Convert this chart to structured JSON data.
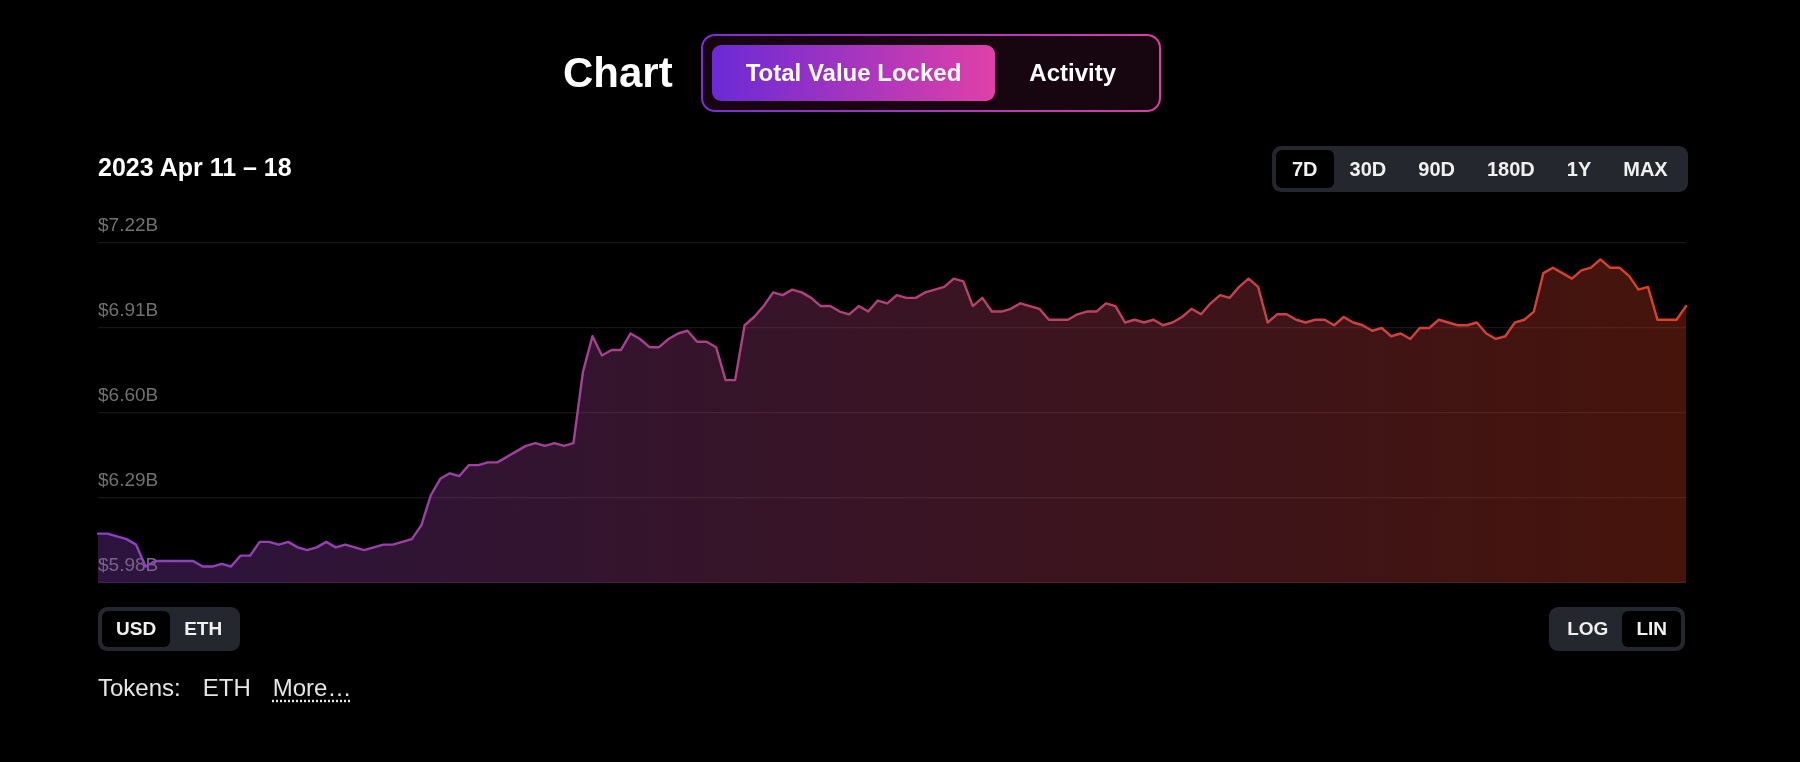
{
  "chart_data": {
    "type": "area",
    "title": "Chart",
    "subtitle": "2023 Apr 11 – 18",
    "annotations": [
      "Total Value Locked",
      "Activity",
      "7D",
      "30D",
      "90D",
      "180D",
      "1Y",
      "MAX",
      "USD",
      "ETH",
      "LOG",
      "LIN",
      "Tokens:",
      "ETH",
      "More…"
    ],
    "categories": [
      null,
      null,
      null,
      null,
      null,
      null,
      null,
      null,
      null,
      null,
      null,
      null,
      null,
      null,
      null,
      null,
      null,
      null,
      null,
      null,
      null,
      null,
      null,
      null,
      null,
      null,
      null,
      null,
      null,
      null,
      null,
      null,
      null,
      null,
      null,
      null,
      null,
      null,
      null,
      null,
      null,
      null,
      null,
      null,
      null,
      null,
      null,
      null,
      null,
      null,
      null,
      null,
      null,
      null,
      null,
      null,
      null,
      null,
      null,
      null,
      null,
      null,
      null,
      null,
      null,
      null,
      null,
      null,
      null,
      null,
      null,
      null,
      null,
      null,
      null,
      null,
      null,
      null,
      null,
      null,
      null,
      null,
      null,
      null,
      null,
      null,
      null,
      null,
      null,
      null,
      null,
      null,
      null,
      null,
      null,
      null,
      null,
      null,
      null,
      null,
      null,
      null,
      null,
      null,
      null,
      null,
      null,
      null,
      null,
      null,
      null,
      null,
      null,
      null,
      null,
      null,
      null,
      null,
      null,
      null,
      null,
      null,
      null,
      null,
      null,
      null,
      null,
      null,
      null,
      null,
      null,
      null,
      null,
      null,
      null,
      null,
      null,
      null,
      null,
      null,
      null,
      null,
      null,
      null,
      null,
      null,
      null,
      null,
      null,
      null,
      null,
      null,
      null,
      null,
      null,
      null,
      null,
      null,
      null,
      null,
      null,
      null,
      null,
      null,
      null,
      null,
      null,
      null
    ],
    "values": [
      6.16,
      6.16,
      6.15,
      6.14,
      6.12,
      6.04,
      6.06,
      6.06,
      6.06,
      6.06,
      6.06,
      6.04,
      6.04,
      6.05,
      6.04,
      6.08,
      6.08,
      6.13,
      6.13,
      6.12,
      6.13,
      6.11,
      6.1,
      6.11,
      6.13,
      6.11,
      6.12,
      6.11,
      6.1,
      6.11,
      6.12,
      6.12,
      6.13,
      6.14,
      6.19,
      6.3,
      6.36,
      6.38,
      6.37,
      6.41,
      6.41,
      6.42,
      6.42,
      6.44,
      6.46,
      6.48,
      6.49,
      6.48,
      6.49,
      6.48,
      6.49,
      6.75,
      6.88,
      6.81,
      6.83,
      6.83,
      6.89,
      6.87,
      6.84,
      6.84,
      6.87,
      6.89,
      6.9,
      6.86,
      6.86,
      6.84,
      6.72,
      6.72,
      6.92,
      6.95,
      6.99,
      7.04,
      7.03,
      7.05,
      7.04,
      7.02,
      6.99,
      6.99,
      6.97,
      6.96,
      6.99,
      6.97,
      7.01,
      7.0,
      7.03,
      7.02,
      7.02,
      7.04,
      7.05,
      7.06,
      7.09,
      7.08,
      6.99,
      7.02,
      6.97,
      6.97,
      6.98,
      7.0,
      6.99,
      6.98,
      6.94,
      6.94,
      6.94,
      6.96,
      6.97,
      6.97,
      7.0,
      6.99,
      6.93,
      6.94,
      6.93,
      6.94,
      6.92,
      6.93,
      6.95,
      6.98,
      6.96,
      7.0,
      7.03,
      7.02,
      7.06,
      7.09,
      7.06,
      6.93,
      6.96,
      6.96,
      6.94,
      6.93,
      6.94,
      6.94,
      6.92,
      6.95,
      6.93,
      6.92,
      6.9,
      6.91,
      6.88,
      6.89,
      6.87,
      6.91,
      6.91,
      6.94,
      6.93,
      6.92,
      6.92,
      6.93,
      6.89,
      6.87,
      6.88,
      6.93,
      6.94,
      6.97,
      7.11,
      7.13,
      7.11,
      7.09,
      7.12,
      7.13,
      7.16,
      7.13,
      7.13,
      7.1,
      7.05,
      7.06,
      6.94,
      6.94,
      6.94,
      6.99
    ],
    "colors": [
      "#8c40c8",
      "#8c40c7",
      "#8d40c6",
      "#8d40c5",
      "#8e40c4",
      "#8e40c3",
      "#8f40c2",
      "#8f40c1",
      "#9040c0",
      "#9040bf",
      "#9140be",
      "#9140bd",
      "#9240bc",
      "#9240bb",
      "#9340ba",
      "#9340b9",
      "#9440b8",
      "#9440b7",
      "#9540b6",
      "#9540b5",
      "#9640b4",
      "#9640b3",
      "#9740b2",
      "#9740b1",
      "#9840b0",
      "#9840af",
      "#9940ae",
      "#9940ad",
      "#9a40ac",
      "#9a40ab",
      "#9b40aa",
      "#9b40a9",
      "#9c40a8",
      "#9c40a7",
      "#9d40a6",
      "#9d40a5",
      "#9e40a4",
      "#9e40a3",
      "#9f40a2",
      "#9f40a1",
      "#a040a0",
      "#a0409f",
      "#a1409e",
      "#a1409d",
      "#a2409c",
      "#a2409b",
      "#a3409a",
      "#a34099",
      "#a44098",
      "#a44097",
      "#a54096",
      "#a54095",
      "#a64094",
      "#a64093",
      "#a74092",
      "#a74091",
      "#a84090",
      "#a8408f",
      "#a9408e",
      "#a9408d",
      "#aa408c",
      "#aa408b",
      "#ab408a",
      "#ab4089",
      "#ac4088",
      "#ac4087",
      "#ad4086",
      "#ad4085",
      "#ae4084",
      "#ae4083",
      "#af4082",
      "#af4081",
      "#b04080",
      "#b0407f",
      "#b1407e",
      "#b1407d",
      "#b2407c",
      "#b2407b",
      "#b3407a",
      "#b34079",
      "#b44078",
      "#b44077",
      "#b54076",
      "#b54075",
      "#b64074",
      "#b64073",
      "#b74072",
      "#b74071",
      "#b84070",
      "#b8406f",
      "#b9406e",
      "#b9406d",
      "#ba406c",
      "#ba406b",
      "#bb406a",
      "#bb4069",
      "#bc4068",
      "#bc4067",
      "#bd4066",
      "#bd4065",
      "#be4064",
      "#be4063",
      "#bf4062",
      "#bf4061",
      "#c04060",
      "#c0405f",
      "#c1405e",
      "#c1405d",
      "#c2405c",
      "#c2405b",
      "#c3405a",
      "#c34059",
      "#c44058",
      "#c44057",
      "#c54056",
      "#c54055",
      "#c64054",
      "#c64053",
      "#c74052",
      "#c74051",
      "#c84050",
      "#c8404f",
      "#c9404e",
      "#c9404d",
      "#ca404c",
      "#ca404b",
      "#cb404a",
      "#cb4049",
      "#cc4048",
      "#cc4047",
      "#cd4046",
      "#cd4045",
      "#ce4044",
      "#ce4043",
      "#cf4042",
      "#cf4041",
      "#d04040",
      "#d0403f",
      "#d1403e",
      "#d1403d",
      "#d2403c",
      "#d2403b",
      "#d3403a",
      "#d34039",
      "#d44038",
      "#d44037",
      "#d54036",
      "#d54035",
      "#d64034",
      "#d64033",
      "#d74032",
      "#d74031",
      "#d84030",
      "#d8402f",
      "#d9402e",
      "#d9402d",
      "#da402c",
      "#da402b",
      "#db402a",
      "#db4029",
      "#dc4028",
      "#dc4027",
      "#dd4026",
      "#dd4025",
      "#de4024",
      "#de4023",
      "#df4022",
      "#df4021"
    ],
    "ylim": [
      5.98,
      7.22
    ],
    "yticks": [
      {
        "value": 5.98,
        "label": "$5.98B"
      },
      {
        "value": 6.29,
        "label": "$6.29B"
      },
      {
        "value": 6.6,
        "label": "$6.60B"
      },
      {
        "value": 6.91,
        "label": "$6.91B"
      },
      {
        "value": 7.22,
        "label": "$7.22B"
      }
    ],
    "grid": "y",
    "tick_labels": "y",
    "marker": "none"
  }
}
